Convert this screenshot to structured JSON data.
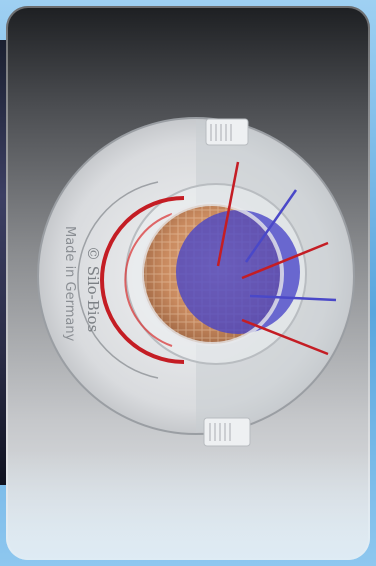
{
  "image": {
    "brand_text": "© Silo-Bios",
    "made_in_text": "Made in Germany",
    "colors": {
      "accent_red": "#c41d24",
      "overlay_blue": "#4a48c8",
      "frame_blue": "#6fb6e8"
    }
  }
}
